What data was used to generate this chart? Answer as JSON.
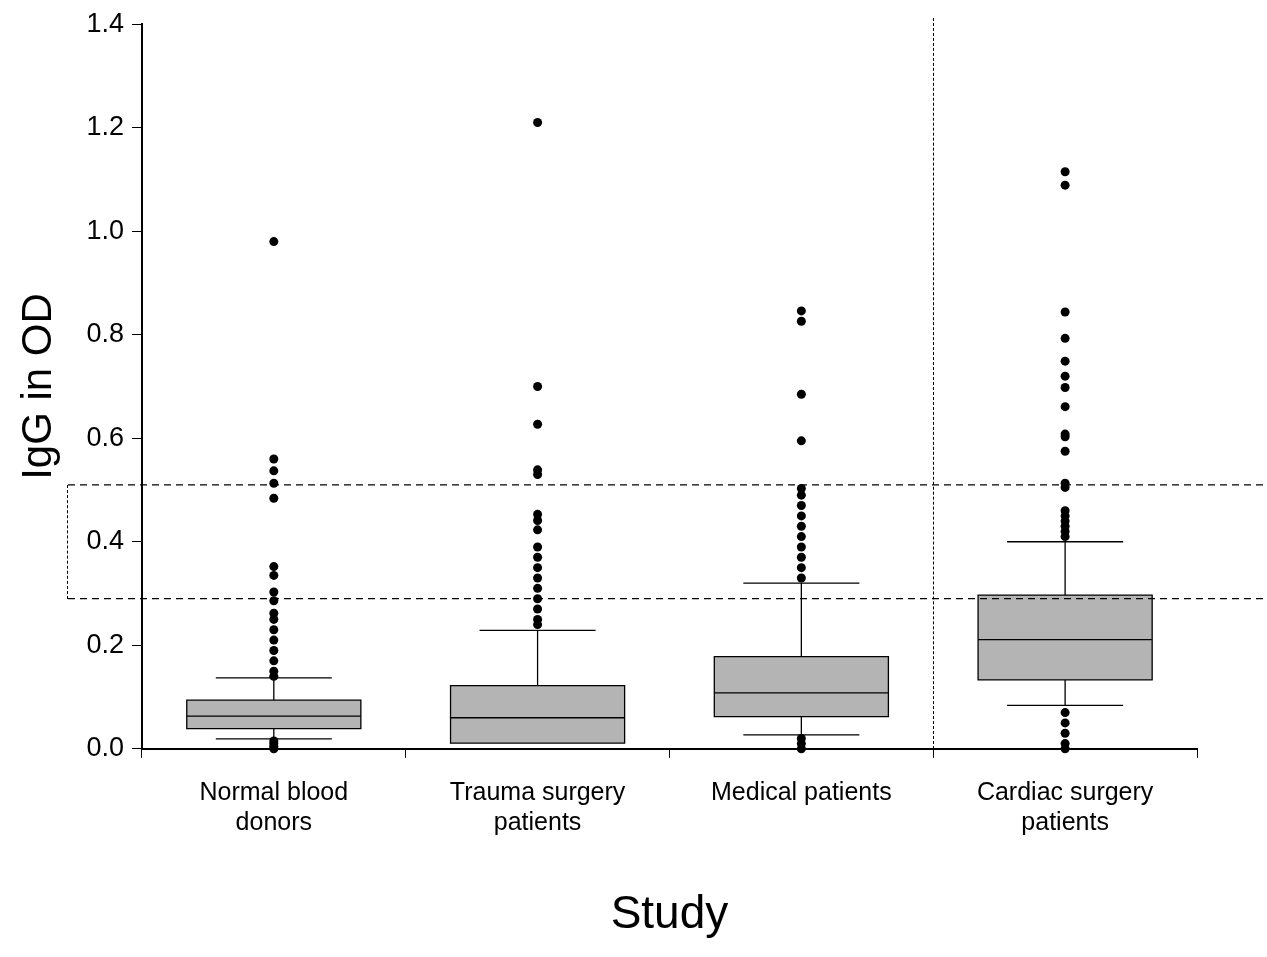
{
  "chart_data": {
    "type": "box",
    "xlabel": "Study",
    "ylabel": "IgG in OD",
    "categories": [
      "Normal blood donors",
      "Trauma surgery patients",
      "Medical patients",
      "Cardiac surgery patients"
    ],
    "color": "#b4b4b4",
    "boxes": [
      {
        "low": 0.019,
        "q1": 0.039,
        "median": 0.063,
        "q3": 0.094,
        "high": 0.137,
        "outliers": [
          0.98,
          0.56,
          0.537,
          0.513,
          0.484,
          0.352,
          0.335,
          0.303,
          0.286,
          0.262,
          0.25,
          0.23,
          0.21,
          0.19,
          0.17,
          0.15,
          0.14,
          0.015,
          0.01,
          0.005,
          0.0
        ]
      },
      {
        "low": 0.011,
        "q1": 0.011,
        "median": 0.06,
        "q3": 0.122,
        "high": 0.229,
        "outliers": [
          1.21,
          0.7,
          0.627,
          0.539,
          0.53,
          0.453,
          0.441,
          0.423,
          0.39,
          0.37,
          0.35,
          0.33,
          0.31,
          0.29,
          0.27,
          0.25,
          0.24
        ]
      },
      {
        "low": 0.027,
        "q1": 0.062,
        "median": 0.108,
        "q3": 0.178,
        "high": 0.32,
        "outliers": [
          0.846,
          0.826,
          0.685,
          0.595,
          0.503,
          0.49,
          0.47,
          0.45,
          0.43,
          0.41,
          0.39,
          0.37,
          0.35,
          0.33,
          0.02,
          0.01,
          0.0
        ]
      },
      {
        "low": 0.084,
        "q1": 0.133,
        "median": 0.211,
        "q3": 0.297,
        "high": 0.4,
        "outliers": [
          1.115,
          1.089,
          0.844,
          0.793,
          0.749,
          0.72,
          0.698,
          0.661,
          0.608,
          0.603,
          0.575,
          0.513,
          0.505,
          0.46,
          0.45,
          0.44,
          0.43,
          0.42,
          0.41,
          0.07,
          0.05,
          0.03,
          0.01,
          0.0
        ]
      }
    ],
    "ylim": [
      0,
      1.4
    ],
    "yticks": [
      {
        "value": 0,
        "label": "0.0"
      },
      {
        "value": 0.2,
        "label": "0.2"
      },
      {
        "value": 0.4,
        "label": "0.4"
      },
      {
        "value": 0.6,
        "label": "0.6"
      },
      {
        "value": 0.8,
        "label": "0.8"
      },
      {
        "value": 1.0,
        "label": "1.0"
      },
      {
        "value": 1.2,
        "label": "1.2"
      },
      {
        "value": 1.4,
        "label": "1.4"
      }
    ],
    "ref_lines": [
      {
        "axis": "y",
        "value": 0.51,
        "color": "#000000",
        "line_style": "dashed"
      },
      {
        "axis": "y",
        "value": 0.29,
        "color": "#000000",
        "line_style": "dashed"
      }
    ],
    "grid": false,
    "legend": false,
    "marker": "circle"
  }
}
